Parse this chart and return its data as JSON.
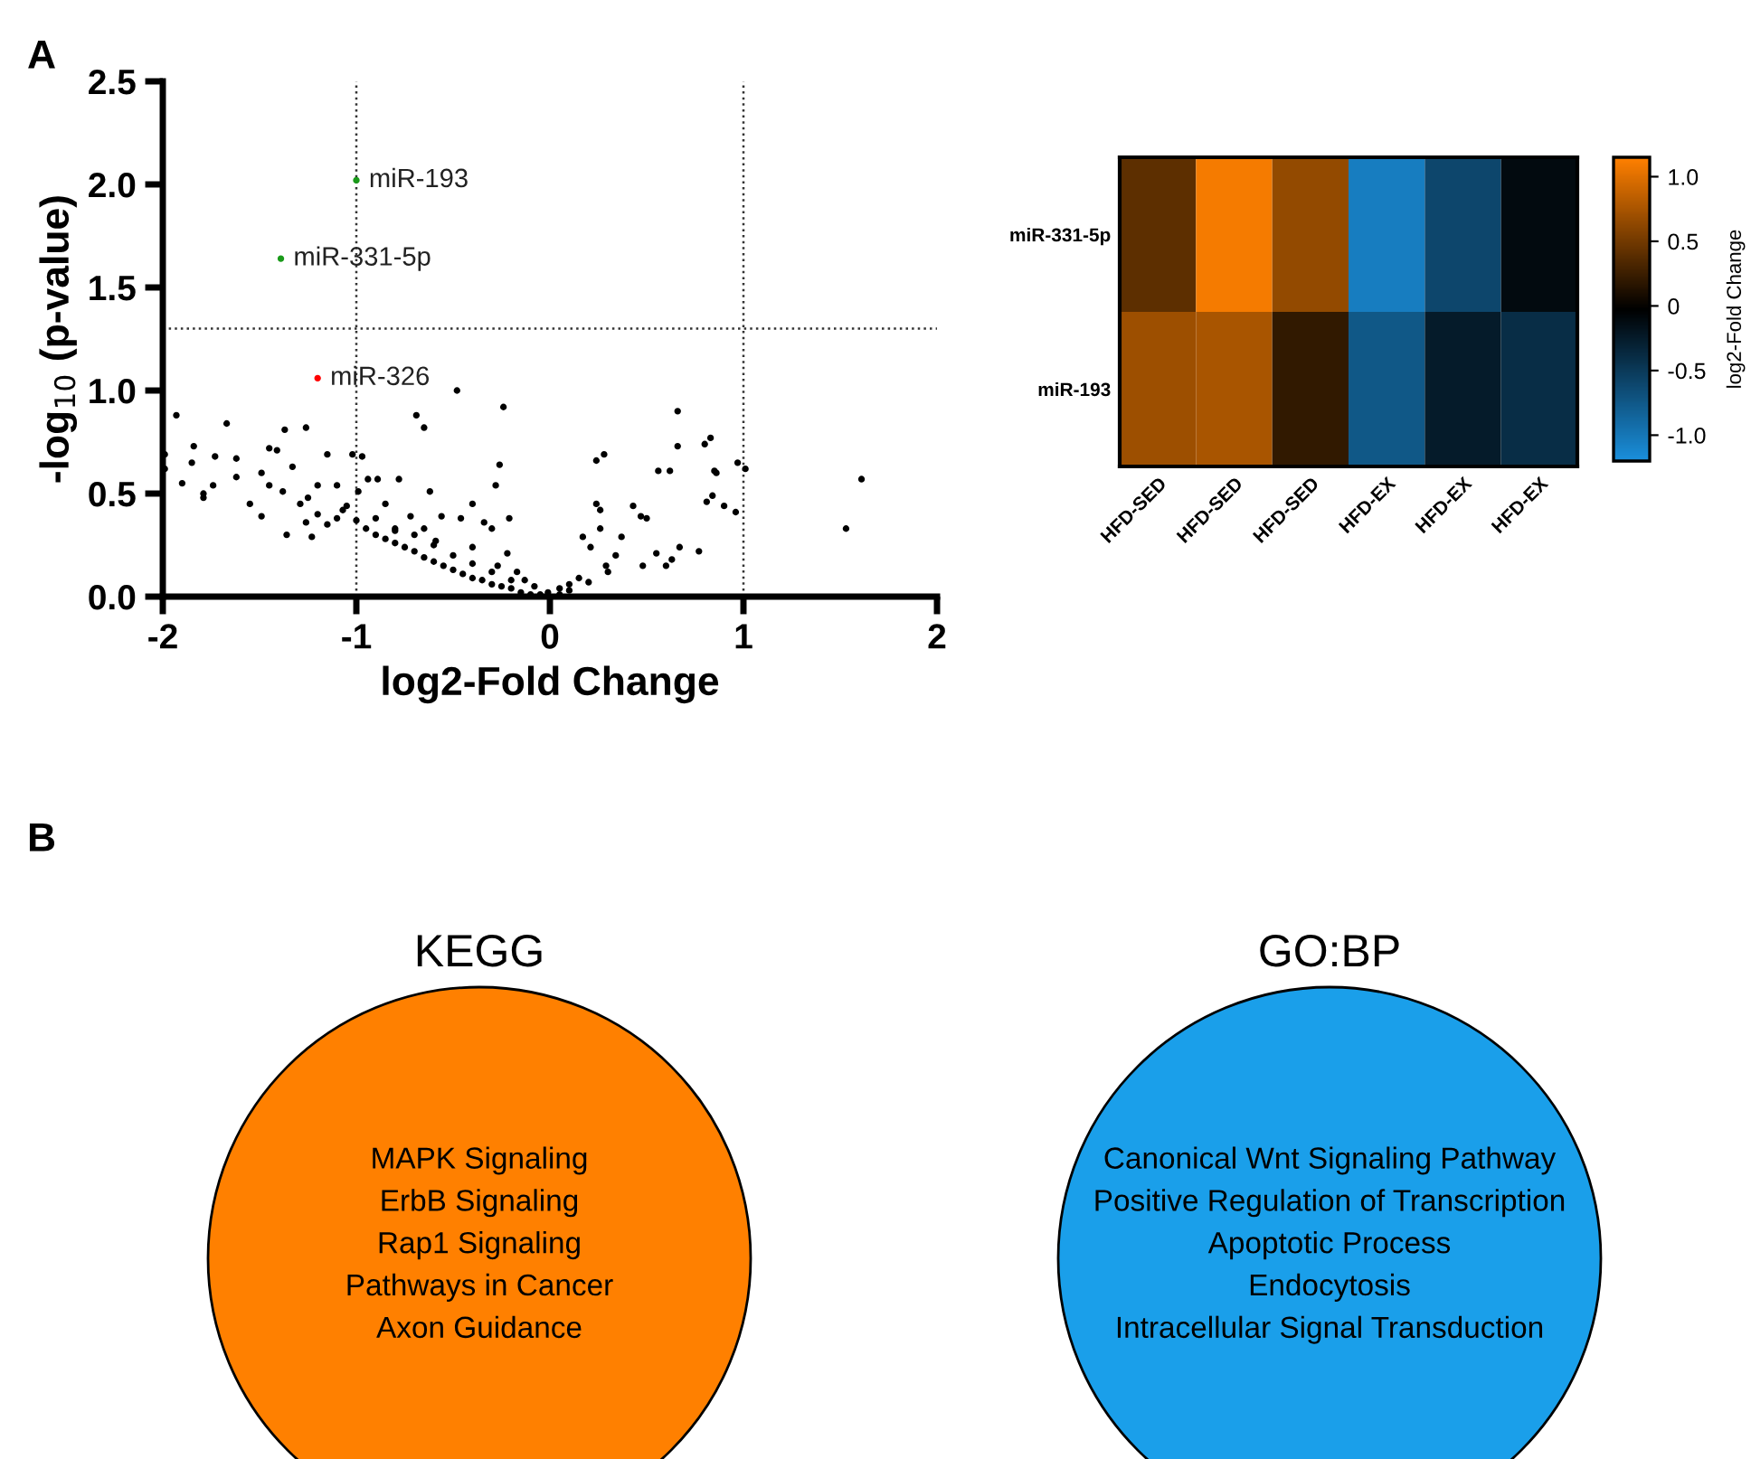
{
  "chart_data": [
    {
      "type": "scatter",
      "xlabel": "log2-Fold Change",
      "ylabel": "-log$_{10}$ (p-value)",
      "xlim": [
        -2,
        2
      ],
      "xticks": [
        -2,
        -1,
        0,
        1,
        2
      ],
      "ylim": [
        0,
        2.5
      ],
      "yticks": [
        {
          "value": 0,
          "label": "0.0"
        },
        0.5,
        {
          "value": 1,
          "label": "1.0"
        },
        1.5,
        {
          "value": 2,
          "label": "2.0"
        },
        2.5
      ],
      "grid": false,
      "marker": "circle",
      "ref_lines": [
        {
          "axis": "x",
          "value": -1,
          "line_style": "dotted"
        },
        {
          "axis": "x",
          "value": 1,
          "line_style": "dotted"
        },
        {
          "axis": "y",
          "value": 1.3,
          "line_style": "dotted"
        }
      ],
      "series": [
        {
          "color": "#000000",
          "x": [
            -1.99,
            -1.99,
            -1.93,
            -1.9,
            -1.84,
            -1.85,
            -1.79,
            -1.79,
            -1.73,
            -1.74,
            -1.67,
            -1.62,
            -1.62,
            -1.55,
            -1.49,
            -1.49,
            -1.45,
            -1.41,
            -1.37,
            -1.26,
            -1.45,
            -1.38,
            -1.36,
            -1.33,
            -1.29,
            -1.26,
            -1.23,
            -1.2,
            -1.15,
            -1.1,
            -1.07,
            -1.02,
            -0.97,
            -0.99,
            -0.94,
            -0.89,
            -0.85,
            -0.8,
            -0.78,
            -0.69,
            -0.65,
            -0.72,
            -0.65,
            -0.62,
            -0.59,
            -0.56,
            -0.48,
            -0.46,
            -0.4,
            -0.4,
            -0.34,
            -0.3,
            -0.28,
            -0.26,
            -0.24,
            -0.27,
            -0.21,
            -0.22,
            -0.17,
            -0.13,
            -0.08,
            -0.01,
            0.05,
            0.1,
            0.15,
            0.17,
            0.21,
            0.24,
            0.24,
            0.26,
            0.28,
            0.26,
            0.29,
            0.34,
            0.37,
            0.43,
            0.47,
            0.5,
            0.48,
            0.55,
            0.56,
            0.62,
            0.6,
            0.63,
            0.66,
            0.66,
            0.67,
            0.77,
            0.8,
            0.83,
            0.81,
            0.84,
            0.85,
            0.86,
            0.9,
            0.96,
            0.97,
            1.01,
            1.53,
            1.61,
            -1.2,
            -1.1,
            -1.0,
            -0.95,
            -0.9,
            -0.85,
            -0.8,
            -0.75,
            -0.7,
            -0.65,
            -0.6,
            -0.55,
            -0.5,
            -0.45,
            -0.4,
            -0.35,
            -0.3,
            -0.25,
            -0.2,
            -0.15,
            -0.1,
            -0.05,
            -1.25,
            -1.15,
            -1.05,
            -0.9,
            -0.8,
            -0.7,
            -0.6,
            -0.5,
            -0.4,
            -0.3,
            -0.2,
            0.05,
            0.1,
            0.2,
            0.3
          ],
          "values": [
            0.69,
            0.62,
            0.88,
            0.55,
            0.73,
            0.65,
            0.5,
            0.48,
            0.68,
            0.54,
            0.84,
            0.67,
            0.58,
            0.45,
            0.6,
            0.39,
            0.72,
            0.71,
            0.81,
            0.82,
            0.54,
            0.51,
            0.3,
            0.63,
            0.45,
            0.36,
            0.29,
            0.54,
            0.69,
            0.54,
            0.42,
            0.69,
            0.68,
            0.51,
            0.57,
            0.57,
            0.45,
            0.33,
            0.57,
            0.88,
            0.82,
            0.39,
            0.33,
            0.51,
            0.27,
            0.39,
            1.0,
            0.38,
            0.45,
            0.24,
            0.36,
            0.33,
            0.54,
            0.64,
            0.92,
            0.15,
            0.38,
            0.21,
            0.12,
            0.08,
            0.05,
            0.02,
            0.04,
            0.06,
            0.09,
            0.29,
            0.24,
            0.66,
            0.45,
            0.42,
            0.69,
            0.33,
            0.15,
            0.2,
            0.29,
            0.44,
            0.39,
            0.38,
            0.15,
            0.21,
            0.61,
            0.61,
            0.15,
            0.18,
            0.9,
            0.73,
            0.24,
            0.22,
            0.74,
            0.77,
            0.46,
            0.49,
            0.61,
            0.6,
            0.44,
            0.41,
            0.65,
            0.62,
            0.33,
            0.57,
            0.4,
            0.38,
            0.37,
            0.33,
            0.3,
            0.28,
            0.26,
            0.24,
            0.22,
            0.19,
            0.17,
            0.15,
            0.13,
            0.11,
            0.09,
            0.08,
            0.06,
            0.05,
            0.04,
            0.02,
            0.01,
            0.01,
            0.48,
            0.35,
            0.44,
            0.38,
            0.32,
            0.3,
            0.25,
            0.2,
            0.16,
            0.12,
            0.08,
            0.01,
            0.03,
            0.07,
            0.12
          ]
        },
        {
          "color": "#1a9a1a",
          "x": [
            -1.0,
            -1.39
          ],
          "values": [
            2.02,
            1.64
          ]
        },
        {
          "color": "#ff0000",
          "x": [
            -1.2
          ],
          "values": [
            1.06
          ]
        }
      ],
      "annotations": [
        "A",
        {
          "text": "miR-193",
          "x": -1.0,
          "y": 2.02
        },
        {
          "text": "miR-331-5p",
          "x": -1.39,
          "y": 1.64
        },
        {
          "text": "miR-326",
          "x": -1.2,
          "y": 1.06
        }
      ]
    },
    {
      "type": "heatmap",
      "categories": [
        "HFD-SED",
        "HFD-SED",
        "HFD-SED",
        "HFD-EX",
        "HFD-EX",
        "HFD-EX"
      ],
      "y_categories": [
        "miR-331-5p",
        "miR-193"
      ],
      "cells": [
        [
          0.4,
          1.1,
          0.65,
          -1.05,
          -0.6,
          -0.1
        ],
        [
          0.7,
          0.75,
          0.2,
          -0.75,
          -0.25,
          -0.4
        ]
      ],
      "clim": [
        -1.2,
        1.15
      ],
      "cticks": [
        {
          "value": -1,
          "label": "-1.0"
        },
        -0.5,
        0,
        0.5,
        {
          "value": 1,
          "label": "1.0"
        }
      ],
      "clabel": "log2-Fold Change",
      "colors": [
        "#1a8fdc",
        "#000000",
        "#ff8000"
      ]
    },
    {
      "type": "other",
      "title": "KEGG",
      "color": "#ff8000",
      "annotations": [
        "B",
        "MAPK Signaling",
        "ErbB Signaling",
        "Rap1 Signaling",
        "Pathways in Cancer",
        "Axon Guidance"
      ]
    },
    {
      "type": "other",
      "title": "GO:BP",
      "color": "#1a9fea",
      "annotations": [
        "Canonical Wnt Signaling Pathway",
        "Positive Regulation of Transcription",
        "Apoptotic Process",
        "Endocytosis",
        "Intracellular Signal Transduction"
      ]
    }
  ]
}
